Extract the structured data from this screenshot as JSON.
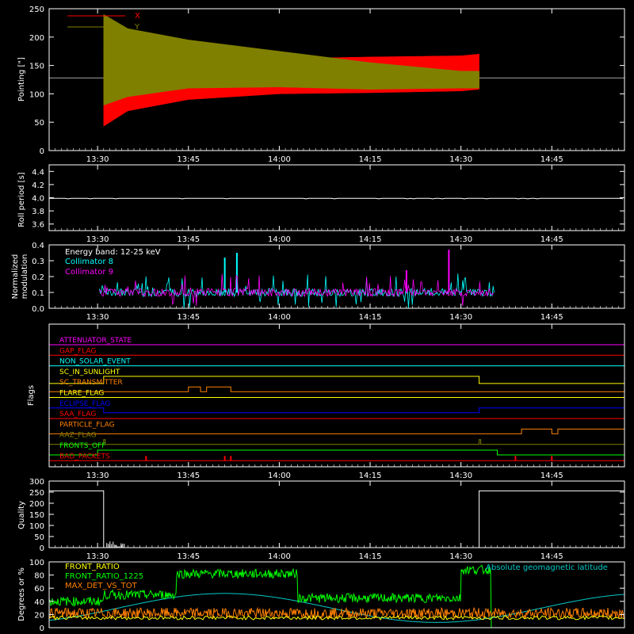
{
  "colors": {
    "bg": "#000000",
    "axes": "#ffffff",
    "x": "#ff0000",
    "y": "#808000",
    "coll8": "#00ffff",
    "coll9": "#ff00ff",
    "front_ratio": "#ffff00",
    "front_ratio_1225": "#00ff00",
    "max_det": "#ff8000",
    "geomag": "#00c8c8"
  },
  "chart_data": [
    {
      "type": "line",
      "ylabel": "Pointing [\"]",
      "xticks": [
        "13:30",
        "13:45",
        "14:00",
        "14:15",
        "14:30",
        "14:45"
      ],
      "yticks": [
        "0",
        "50",
        "100",
        "150",
        "200",
        "250"
      ],
      "ylim": [
        0,
        250
      ],
      "xlim": [
        "13:22",
        "14:57"
      ],
      "legend": [
        {
          "name": "X",
          "color": "#ff0000"
        },
        {
          "name": "Y",
          "color": "#808000"
        }
      ],
      "series": [
        {
          "name": "X",
          "envelope": [
            {
              "t": "13:31",
              "hi": 175,
              "lo": 43
            },
            {
              "t": "13:35",
              "hi": 170,
              "lo": 70
            },
            {
              "t": "13:45",
              "hi": 168,
              "lo": 90
            },
            {
              "t": "14:00",
              "hi": 162,
              "lo": 100
            },
            {
              "t": "14:15",
              "hi": 165,
              "lo": 102
            },
            {
              "t": "14:30",
              "hi": 167,
              "lo": 105
            },
            {
              "t": "14:33",
              "hi": 170,
              "lo": 108
            }
          ]
        },
        {
          "name": "Y",
          "envelope": [
            {
              "t": "13:31",
              "hi": 240,
              "lo": 80
            },
            {
              "t": "13:35",
              "hi": 215,
              "lo": 95
            },
            {
              "t": "13:45",
              "hi": 195,
              "lo": 110
            },
            {
              "t": "14:00",
              "hi": 175,
              "lo": 112
            },
            {
              "t": "14:15",
              "hi": 155,
              "lo": 108
            },
            {
              "t": "14:30",
              "hi": 140,
              "lo": 110
            },
            {
              "t": "14:33",
              "hi": 140,
              "lo": 110
            }
          ]
        }
      ],
      "reference_level": 128
    },
    {
      "type": "line",
      "ylabel": "Roll period [s]",
      "xticks": [
        "13:30",
        "13:45",
        "14:00",
        "14:15",
        "14:30",
        "14:45"
      ],
      "yticks": [
        "3.6",
        "3.8",
        "4.0",
        "4.2",
        "4.4"
      ],
      "ylim": [
        3.5,
        4.5
      ],
      "series": [
        {
          "name": "roll period",
          "value": 3.99
        }
      ]
    },
    {
      "type": "line",
      "ylabel": [
        "Normalized",
        "modulation"
      ],
      "xticks": [
        "13:30",
        "13:45",
        "14:00",
        "14:15",
        "14:30",
        "14:45"
      ],
      "yticks": [
        "0.0",
        "0.1",
        "0.2",
        "0.3",
        "0.4"
      ],
      "ylim": [
        0,
        0.4
      ],
      "annotation": "Energy band: 12-25 keV",
      "legend": [
        {
          "name": "Collimator 8",
          "color": "#00ffff"
        },
        {
          "name": "Collimator 9",
          "color": "#ff00ff"
        }
      ],
      "series": [
        {
          "name": "Collimator 8",
          "baseline": 0.1,
          "peaks": [
            {
              "t": "13:53",
              "v": 0.35
            },
            {
              "t": "13:51",
              "v": 0.32
            }
          ]
        },
        {
          "name": "Collimator 9",
          "baseline": 0.1,
          "peaks": [
            {
              "t": "14:28",
              "v": 0.37
            },
            {
              "t": "14:21",
              "v": 0.24
            }
          ]
        }
      ]
    },
    {
      "type": "line",
      "ylabel": "Flags",
      "xticks": [
        "13:30",
        "13:45",
        "14:00",
        "14:15",
        "14:30",
        "14:45"
      ],
      "flags": [
        {
          "name": "ATTENUATOR_STATE",
          "color": "#ff00ff"
        },
        {
          "name": "GAP_FLAG",
          "color": "#ff0000"
        },
        {
          "name": "NON_SOLAR_EVENT",
          "color": "#00ffff"
        },
        {
          "name": "SC_IN_SUNLIGHT",
          "color": "#ffff00"
        },
        {
          "name": "SC_TRANSMITTER",
          "color": "#ff8000"
        },
        {
          "name": "FLARE_FLAG",
          "color": "#ffff00"
        },
        {
          "name": "ECLIPSE_FLAG",
          "color": "#0000ff"
        },
        {
          "name": "SAA_FLAG",
          "color": "#ff0000"
        },
        {
          "name": "PARTICLE_FLAG",
          "color": "#ff8000"
        },
        {
          "name": "AAZ_FLAG",
          "color": "#808000"
        },
        {
          "name": "FRONTS_OFF",
          "color": "#00ff00"
        },
        {
          "name": "BAD_PACKETS",
          "color": "#ff0000"
        }
      ]
    },
    {
      "type": "line",
      "ylabel": "Quality",
      "xticks": [
        "13:30",
        "13:45",
        "14:00",
        "14:15",
        "14:30",
        "14:45"
      ],
      "yticks": [
        "0",
        "50",
        "100",
        "150",
        "200",
        "250",
        "300"
      ],
      "ylim": [
        0,
        300
      ],
      "series": [
        {
          "name": "quality",
          "before": 256,
          "after": 256,
          "gap": [
            "13:31",
            "14:33"
          ]
        }
      ]
    },
    {
      "type": "line",
      "ylabel": "Degrees or %",
      "yticks": [
        "0",
        "20",
        "40",
        "60",
        "80",
        "100"
      ],
      "ylim": [
        0,
        100
      ],
      "annotation": "Absolute geomagnetic latitude",
      "legend": [
        {
          "name": "FRONT_RATIO",
          "color": "#ffff00"
        },
        {
          "name": "FRONT_RATIO_1225",
          "color": "#00ff00"
        },
        {
          "name": "MAX_DET_VS_TOT",
          "color": "#ff8000"
        }
      ]
    }
  ]
}
